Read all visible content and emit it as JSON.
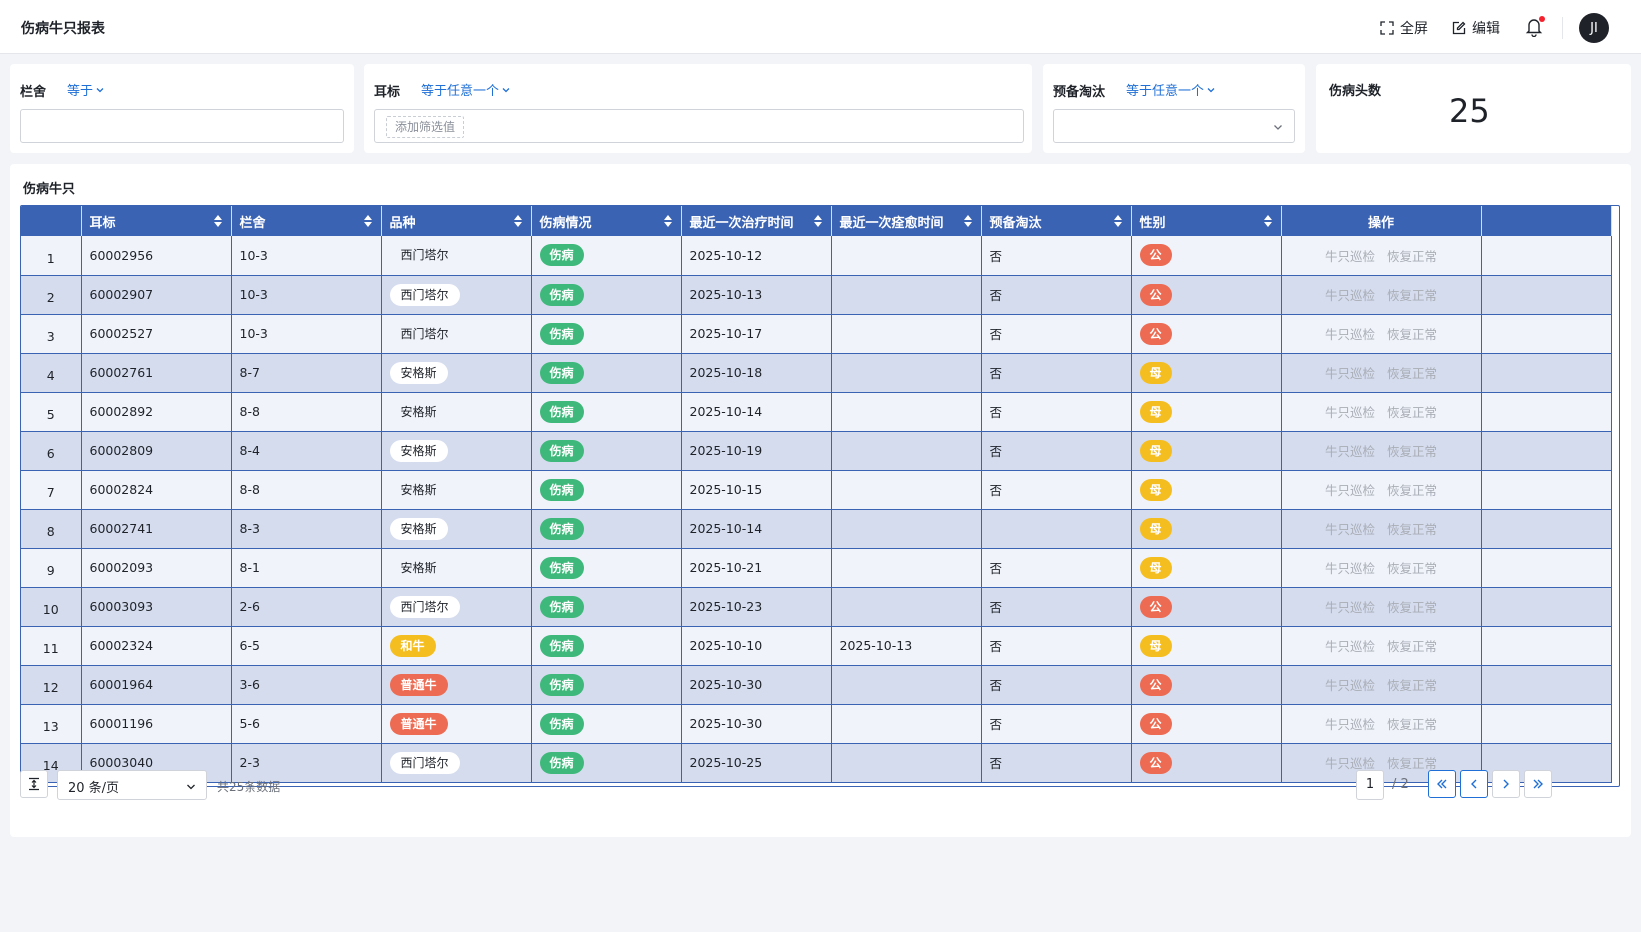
{
  "header": {
    "title": "伤病牛只报表",
    "fullscreen_label": "全屏",
    "edit_label": "编辑",
    "avatar_text": "JI"
  },
  "filters": {
    "pen": {
      "label": "栏舍",
      "operator": "等于",
      "value": ""
    },
    "eartag": {
      "label": "耳标",
      "operator": "等于任意一个",
      "add_label": "添加筛选值"
    },
    "cull": {
      "label": "预备淘汰",
      "operator": "等于任意一个",
      "value": ""
    }
  },
  "stat": {
    "label": "伤病头数",
    "value": "25"
  },
  "table": {
    "title": "伤病牛只",
    "columns": [
      "",
      "耳标",
      "栏舍",
      "品种",
      "伤病情况",
      "最近一次治疗时间",
      "最近一次痊愈时间",
      "预备淘汰",
      "性别",
      "操作",
      ""
    ],
    "op_labels": [
      "牛只巡检",
      "恢复正常"
    ],
    "rows": [
      {
        "idx": "1",
        "eartag": "60002956",
        "pen": "10-3",
        "breed": "西门塔尔",
        "breed_style": "plain",
        "status": "伤病",
        "treat": "2025-10-12",
        "heal": "",
        "cull": "否",
        "sex": "公"
      },
      {
        "idx": "2",
        "eartag": "60002907",
        "pen": "10-3",
        "breed": "西门塔尔",
        "breed_style": "plain",
        "status": "伤病",
        "treat": "2025-10-13",
        "heal": "",
        "cull": "否",
        "sex": "公"
      },
      {
        "idx": "3",
        "eartag": "60002527",
        "pen": "10-3",
        "breed": "西门塔尔",
        "breed_style": "plain",
        "status": "伤病",
        "treat": "2025-10-17",
        "heal": "",
        "cull": "否",
        "sex": "公"
      },
      {
        "idx": "4",
        "eartag": "60002761",
        "pen": "8-7",
        "breed": "安格斯",
        "breed_style": "plain",
        "status": "伤病",
        "treat": "2025-10-18",
        "heal": "",
        "cull": "否",
        "sex": "母"
      },
      {
        "idx": "5",
        "eartag": "60002892",
        "pen": "8-8",
        "breed": "安格斯",
        "breed_style": "plain",
        "status": "伤病",
        "treat": "2025-10-14",
        "heal": "",
        "cull": "否",
        "sex": "母"
      },
      {
        "idx": "6",
        "eartag": "60002809",
        "pen": "8-4",
        "breed": "安格斯",
        "breed_style": "plain",
        "status": "伤病",
        "treat": "2025-10-19",
        "heal": "",
        "cull": "否",
        "sex": "母"
      },
      {
        "idx": "7",
        "eartag": "60002824",
        "pen": "8-8",
        "breed": "安格斯",
        "breed_style": "plain",
        "status": "伤病",
        "treat": "2025-10-15",
        "heal": "",
        "cull": "否",
        "sex": "母"
      },
      {
        "idx": "8",
        "eartag": "60002741",
        "pen": "8-3",
        "breed": "安格斯",
        "breed_style": "plain",
        "status": "伤病",
        "treat": "2025-10-14",
        "heal": "",
        "cull": "",
        "sex": "母"
      },
      {
        "idx": "9",
        "eartag": "60002093",
        "pen": "8-1",
        "breed": "安格斯",
        "breed_style": "plain",
        "status": "伤病",
        "treat": "2025-10-21",
        "heal": "",
        "cull": "否",
        "sex": "母"
      },
      {
        "idx": "10",
        "eartag": "60003093",
        "pen": "2-6",
        "breed": "西门塔尔",
        "breed_style": "plain",
        "status": "伤病",
        "treat": "2025-10-23",
        "heal": "",
        "cull": "否",
        "sex": "公"
      },
      {
        "idx": "11",
        "eartag": "60002324",
        "pen": "6-5",
        "breed": "和牛",
        "breed_style": "yellow",
        "status": "伤病",
        "treat": "2025-10-10",
        "heal": "2025-10-13",
        "cull": "否",
        "sex": "母"
      },
      {
        "idx": "12",
        "eartag": "60001964",
        "pen": "3-6",
        "breed": "普通牛",
        "breed_style": "red",
        "status": "伤病",
        "treat": "2025-10-30",
        "heal": "",
        "cull": "否",
        "sex": "公"
      },
      {
        "idx": "13",
        "eartag": "60001196",
        "pen": "5-6",
        "breed": "普通牛",
        "breed_style": "red",
        "status": "伤病",
        "treat": "2025-10-30",
        "heal": "",
        "cull": "否",
        "sex": "公"
      },
      {
        "idx": "14",
        "eartag": "60003040",
        "pen": "2-3",
        "breed": "西门塔尔",
        "breed_style": "plain",
        "status": "伤病",
        "treat": "2025-10-25",
        "heal": "",
        "cull": "否",
        "sex": "公"
      }
    ]
  },
  "pager": {
    "page_size": "20 条/页",
    "total": "共25条数据",
    "current": "1",
    "total_pages": "/ 2"
  },
  "colors": {
    "accent": "#3b63b3",
    "link": "#1f6fd6",
    "green": "#3fb97b",
    "yellow": "#f5be20",
    "red": "#ec6b52"
  }
}
